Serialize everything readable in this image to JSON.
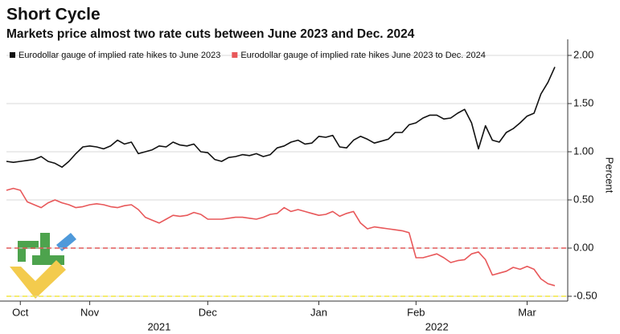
{
  "chart_data": {
    "type": "line",
    "title": "Short Cycle",
    "subtitle": "Markets price almost two rate cuts between June 2023 and Dec. 2024",
    "y_label": "Percent",
    "categories": [
      null,
      null,
      "Oct",
      null,
      null,
      null,
      null,
      null,
      null,
      null,
      null,
      null,
      "Nov",
      null,
      null,
      null,
      null,
      null,
      null,
      null,
      null,
      null,
      null,
      null,
      null,
      null,
      null,
      null,
      null,
      "Dec",
      null,
      null,
      null,
      null,
      null,
      null,
      null,
      null,
      null,
      null,
      null,
      null,
      null,
      null,
      null,
      "Jan",
      null,
      null,
      null,
      null,
      null,
      null,
      null,
      null,
      null,
      null,
      null,
      null,
      null,
      "Feb",
      null,
      null,
      null,
      null,
      null,
      null,
      null,
      null,
      null,
      null,
      null,
      null,
      null,
      null,
      null,
      "Mar",
      null,
      null,
      null,
      null
    ],
    "category_groups": [
      {
        "label": "2021",
        "categories": [
          0,
          44
        ]
      },
      {
        "label": "2022",
        "categories": [
          45,
          79
        ]
      }
    ],
    "series": [
      {
        "name": "Eurodollar gauge of implied rate hikes to June 2023",
        "color": "#111111",
        "values": [
          0.9,
          0.89,
          0.9,
          0.91,
          0.92,
          0.95,
          0.9,
          0.88,
          0.84,
          0.9,
          0.98,
          1.05,
          1.06,
          1.05,
          1.03,
          1.06,
          1.12,
          1.08,
          1.1,
          0.98,
          1.0,
          1.02,
          1.06,
          1.05,
          1.1,
          1.07,
          1.06,
          1.08,
          1.0,
          0.99,
          0.92,
          0.9,
          0.94,
          0.95,
          0.97,
          0.96,
          0.98,
          0.95,
          0.97,
          1.04,
          1.06,
          1.1,
          1.12,
          1.08,
          1.09,
          1.16,
          1.15,
          1.17,
          1.05,
          1.04,
          1.12,
          1.16,
          1.13,
          1.09,
          1.11,
          1.13,
          1.2,
          1.2,
          1.28,
          1.3,
          1.35,
          1.38,
          1.38,
          1.34,
          1.35,
          1.4,
          1.44,
          1.3,
          1.03,
          1.27,
          1.12,
          1.1,
          1.2,
          1.24,
          1.3,
          1.37,
          1.4,
          1.6,
          1.72,
          1.88
        ]
      },
      {
        "name": "Eurodollar gauge of implied rate hikes June 2023 to Dec. 2024",
        "color": "#e8585a",
        "values": [
          0.6,
          0.62,
          0.6,
          0.48,
          0.45,
          0.42,
          0.47,
          0.5,
          0.47,
          0.45,
          0.42,
          0.43,
          0.45,
          0.46,
          0.45,
          0.43,
          0.42,
          0.44,
          0.45,
          0.4,
          0.32,
          0.29,
          0.26,
          0.3,
          0.34,
          0.33,
          0.34,
          0.37,
          0.35,
          0.3,
          0.3,
          0.3,
          0.31,
          0.32,
          0.32,
          0.31,
          0.3,
          0.32,
          0.35,
          0.36,
          0.42,
          0.38,
          0.4,
          0.38,
          0.36,
          0.34,
          0.35,
          0.38,
          0.33,
          0.36,
          0.38,
          0.26,
          0.2,
          0.22,
          0.21,
          0.2,
          0.19,
          0.18,
          0.16,
          -0.1,
          -0.1,
          -0.08,
          -0.06,
          -0.1,
          -0.15,
          -0.13,
          -0.12,
          -0.06,
          -0.04,
          -0.12,
          -0.28,
          -0.26,
          -0.24,
          -0.2,
          -0.22,
          -0.19,
          -0.22,
          -0.32,
          -0.37,
          -0.39
        ]
      }
    ],
    "ylim": [
      -0.55,
      2.1
    ],
    "yticks": [
      {
        "value": 2,
        "label": "2.00"
      },
      {
        "value": 1.5,
        "label": "1.50"
      },
      {
        "value": 1,
        "label": "1.00"
      },
      {
        "value": 0.5,
        "label": "0.50"
      },
      {
        "value": 0,
        "label": "0.00"
      },
      {
        "value": -0.5,
        "label": "-0.50"
      }
    ],
    "grid": true,
    "reference_lines": [
      {
        "value": 0,
        "color": "#e05a5a"
      },
      {
        "value": -0.5,
        "color": "#f2e640"
      }
    ],
    "legend": "top-left"
  }
}
